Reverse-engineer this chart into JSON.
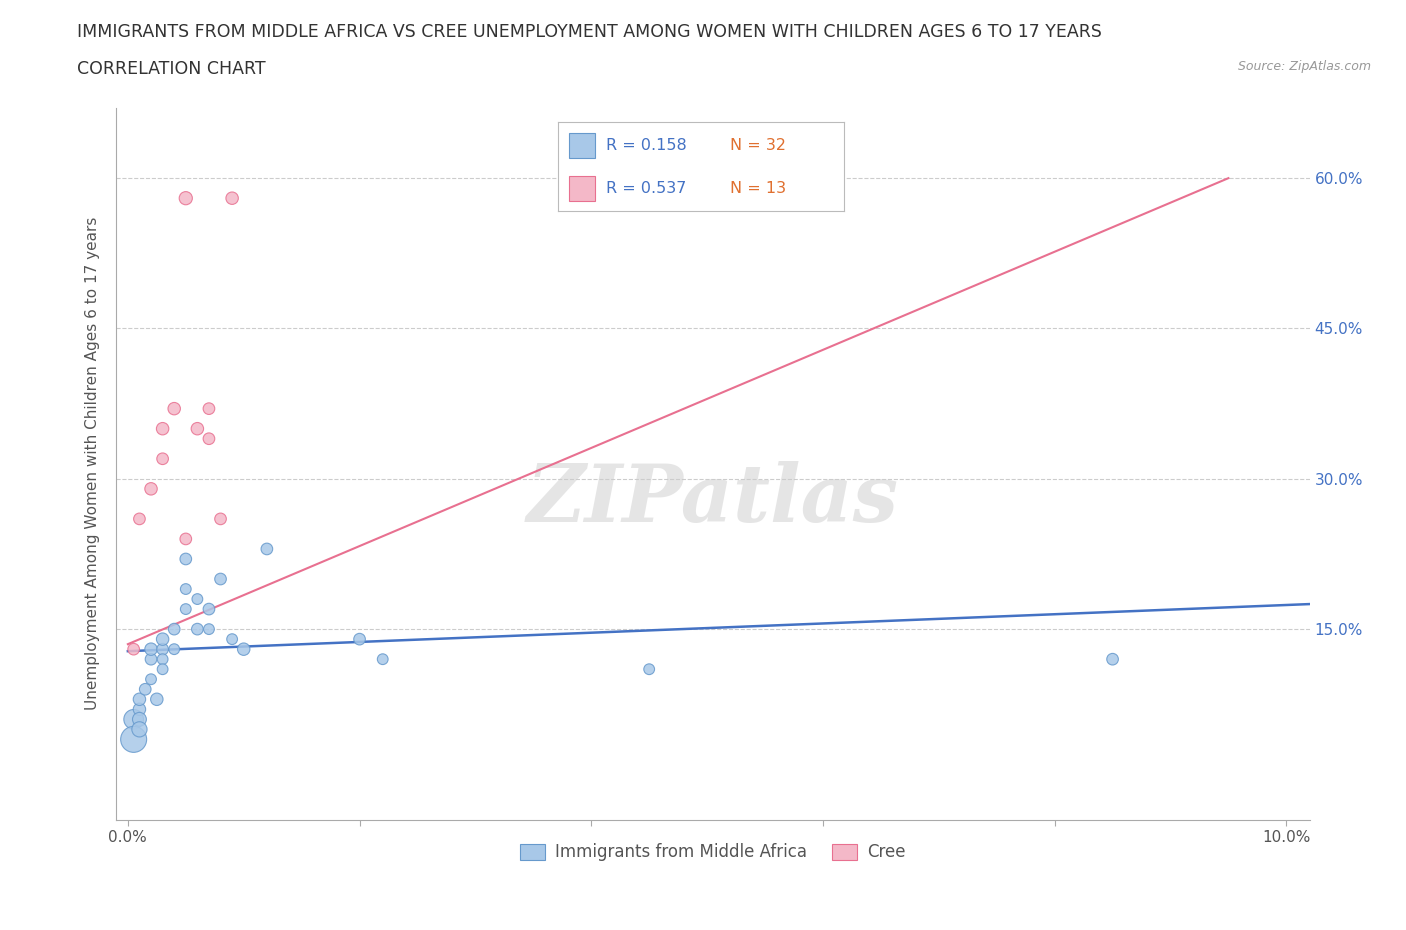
{
  "title_line1": "IMMIGRANTS FROM MIDDLE AFRICA VS CREE UNEMPLOYMENT AMONG WOMEN WITH CHILDREN AGES 6 TO 17 YEARS",
  "title_line2": "CORRELATION CHART",
  "source_text": "Source: ZipAtlas.com",
  "ylabel": "Unemployment Among Women with Children Ages 6 to 17 years",
  "xlim": [
    -0.001,
    0.102
  ],
  "ylim": [
    -0.04,
    0.67
  ],
  "xticks": [
    0.0,
    0.02,
    0.04,
    0.06,
    0.08,
    0.1
  ],
  "xtick_labels": [
    "0.0%",
    "",
    "",
    "",
    "",
    "10.0%"
  ],
  "yticks": [
    0.0,
    0.15,
    0.3,
    0.45,
    0.6
  ],
  "ytick_labels_right": [
    "",
    "15.0%",
    "30.0%",
    "45.0%",
    "60.0%"
  ],
  "blue_color": "#a8c8e8",
  "pink_color": "#f4b8c8",
  "blue_edge_color": "#6699cc",
  "pink_edge_color": "#e87090",
  "blue_line_color": "#4472c4",
  "pink_line_color": "#e87090",
  "watermark": "ZIPatlas",
  "legend_r1": "R = 0.158",
  "legend_n1": "N = 32",
  "legend_r2": "R = 0.537",
  "legend_n2": "N = 13",
  "series1_label": "Immigrants from Middle Africa",
  "series2_label": "Cree",
  "blue_points_x": [
    0.0005,
    0.0005,
    0.001,
    0.001,
    0.001,
    0.001,
    0.0015,
    0.002,
    0.002,
    0.002,
    0.0025,
    0.003,
    0.003,
    0.003,
    0.003,
    0.004,
    0.004,
    0.005,
    0.005,
    0.005,
    0.006,
    0.006,
    0.007,
    0.007,
    0.008,
    0.009,
    0.01,
    0.012,
    0.02,
    0.022,
    0.045,
    0.085
  ],
  "blue_points_y": [
    0.06,
    0.04,
    0.07,
    0.06,
    0.05,
    0.08,
    0.09,
    0.12,
    0.13,
    0.1,
    0.08,
    0.13,
    0.12,
    0.14,
    0.11,
    0.15,
    0.13,
    0.22,
    0.19,
    0.17,
    0.15,
    0.18,
    0.17,
    0.15,
    0.2,
    0.14,
    0.13,
    0.23,
    0.14,
    0.12,
    0.11,
    0.12
  ],
  "blue_bubble_sizes": [
    200,
    350,
    80,
    100,
    120,
    80,
    70,
    70,
    80,
    60,
    80,
    70,
    60,
    80,
    60,
    70,
    60,
    70,
    60,
    60,
    70,
    60,
    70,
    60,
    70,
    60,
    80,
    70,
    70,
    60,
    60,
    70
  ],
  "pink_points_x": [
    0.0005,
    0.001,
    0.002,
    0.003,
    0.003,
    0.004,
    0.005,
    0.005,
    0.006,
    0.007,
    0.007,
    0.008,
    0.009
  ],
  "pink_points_y": [
    0.13,
    0.26,
    0.29,
    0.35,
    0.32,
    0.37,
    0.58,
    0.24,
    0.35,
    0.37,
    0.34,
    0.26,
    0.58
  ],
  "pink_bubble_sizes": [
    70,
    70,
    80,
    80,
    70,
    80,
    90,
    70,
    80,
    70,
    70,
    70,
    80
  ],
  "blue_trend_x": [
    0.0,
    0.102
  ],
  "blue_trend_y": [
    0.128,
    0.175
  ],
  "pink_trend_x": [
    0.0,
    0.095
  ],
  "pink_trend_y": [
    0.135,
    0.6
  ],
  "grid_color": "#cccccc",
  "background_color": "#ffffff",
  "title_fontsize": 12.5,
  "subtitle_fontsize": 12.5,
  "axis_label_fontsize": 11,
  "tick_fontsize": 11,
  "legend_color_r": "#4472c4",
  "legend_color_n": "#e07030"
}
